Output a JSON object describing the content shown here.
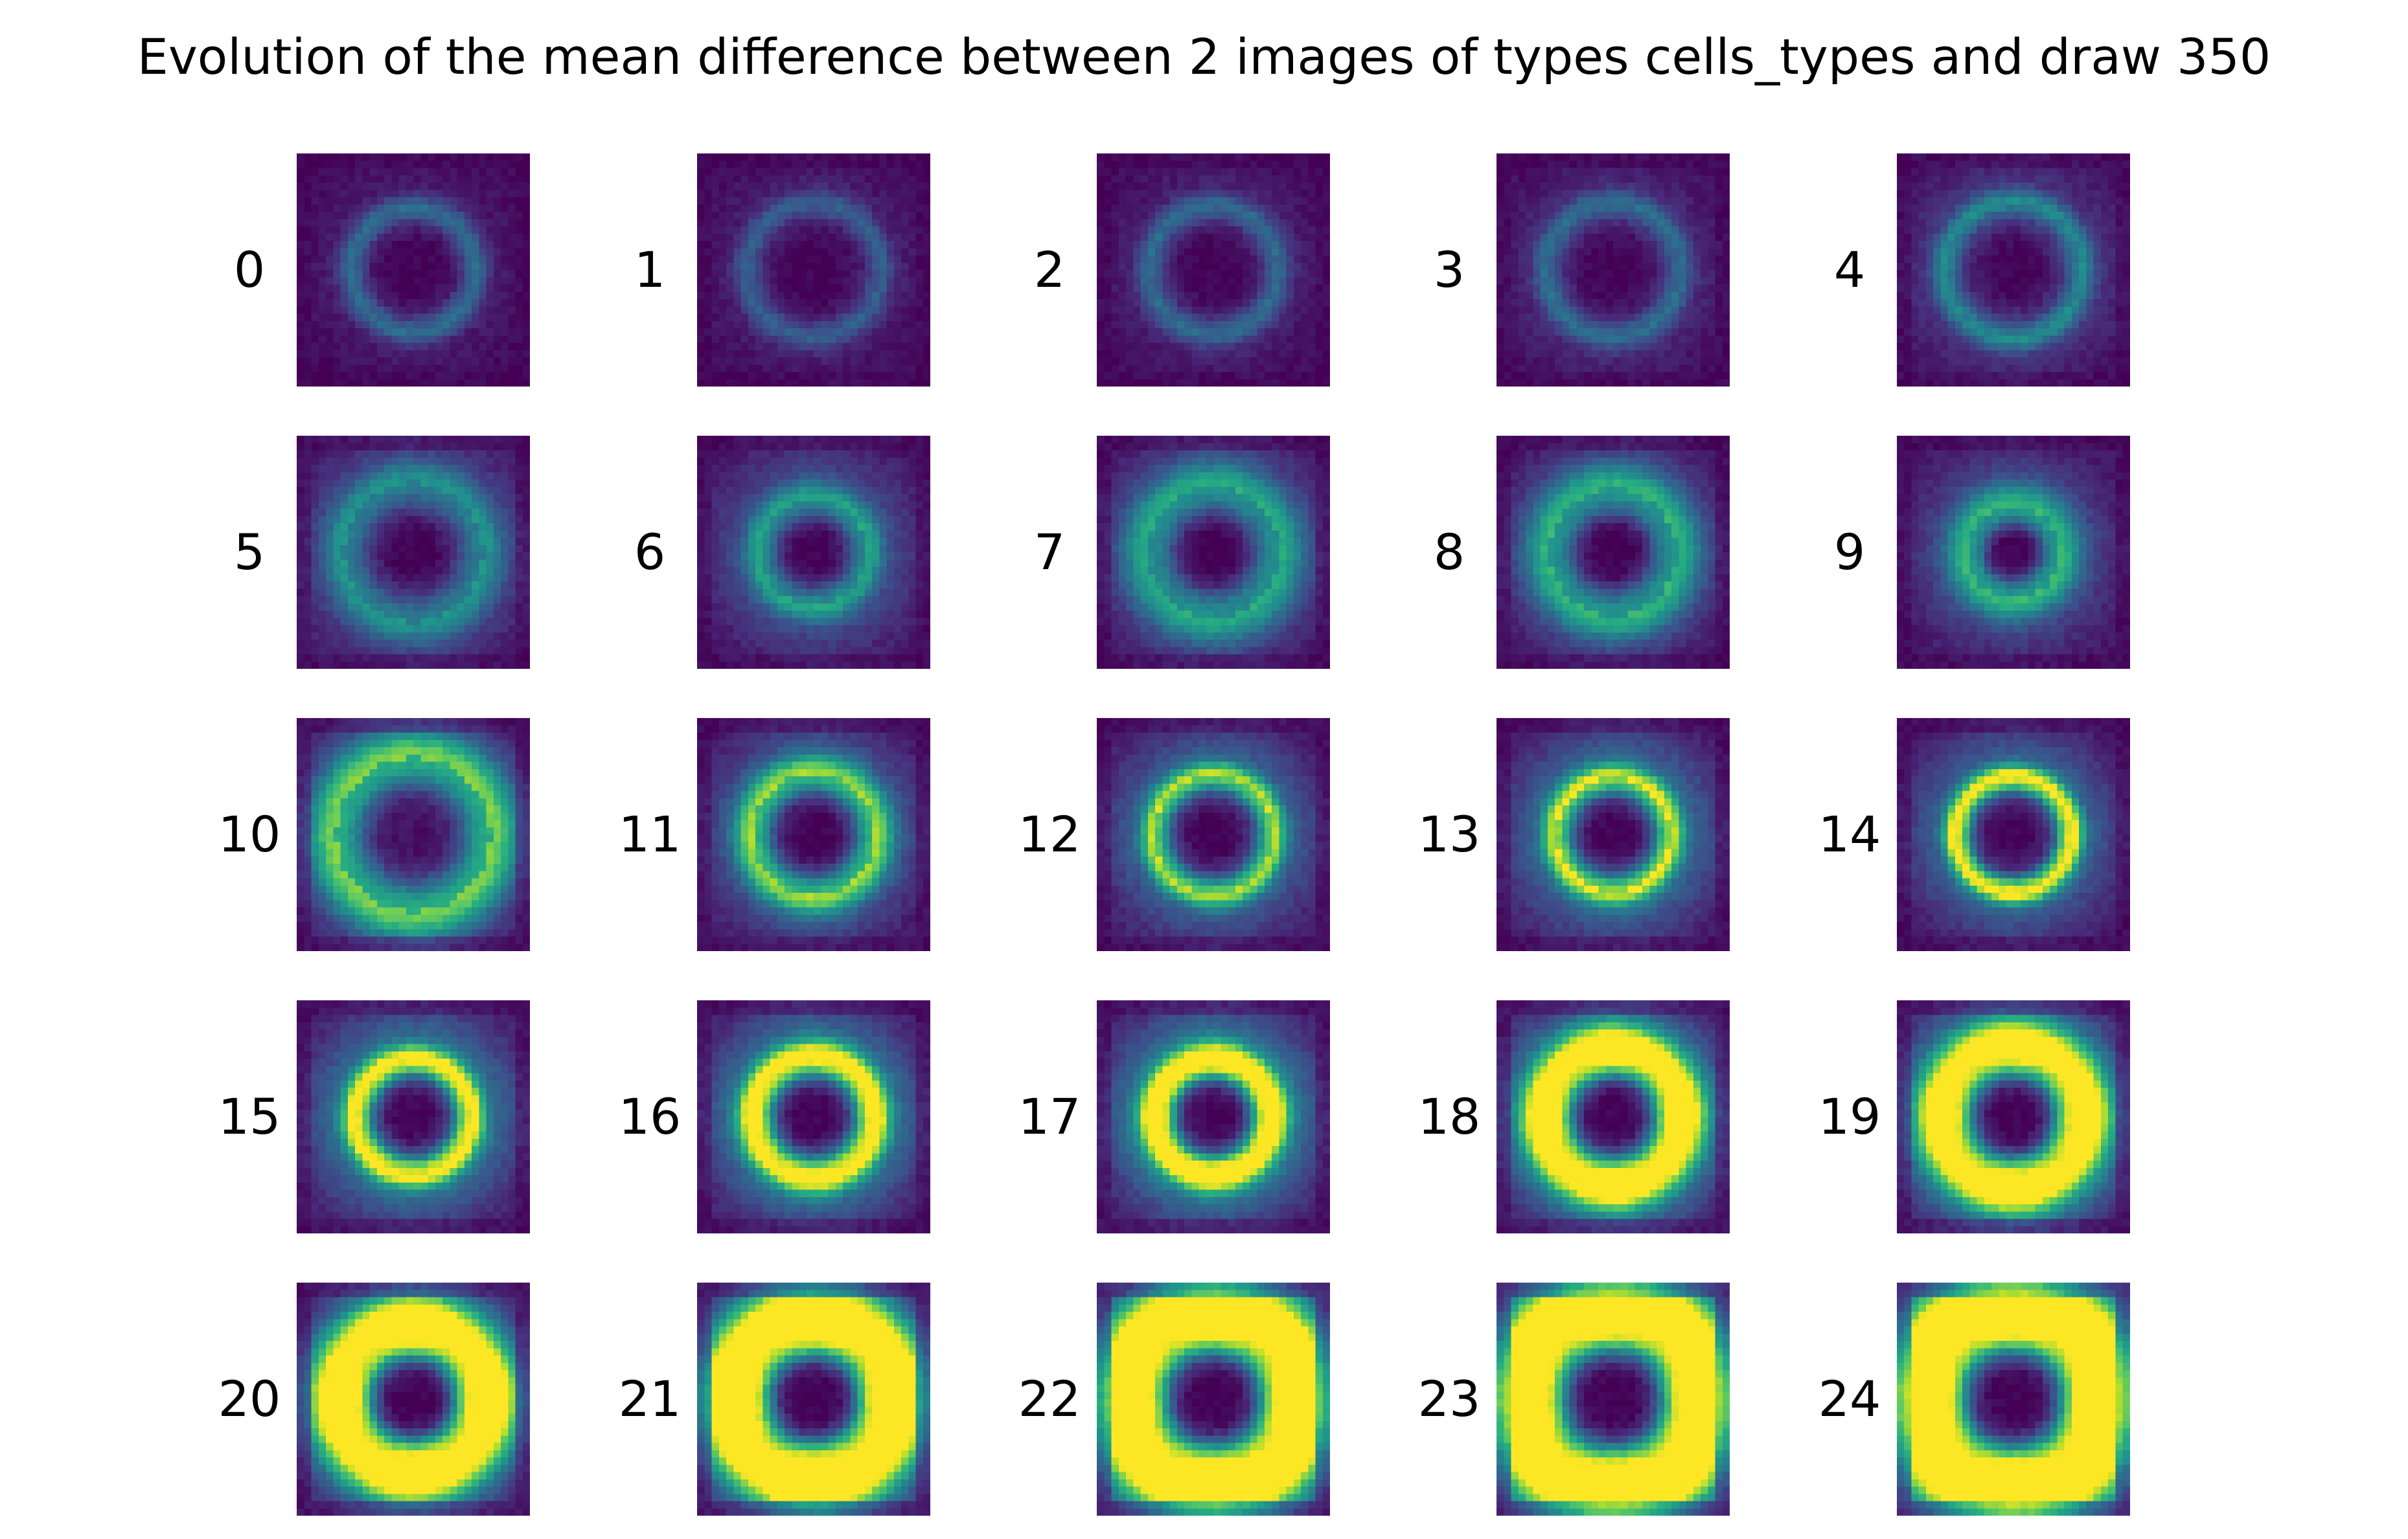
{
  "chart_data": {
    "type": "heatmap",
    "title": "Evolution of the mean difference between 2 images of types cells_types and draw 350",
    "colormap": "viridis",
    "grid": false,
    "layout": "5x5 grid of small heatmaps",
    "panels": [
      {
        "label": "0",
        "ring_intensity": 0.28,
        "ring_radius": 0.26,
        "ring_width": 0.06,
        "background": 0.06,
        "outer_glow": 0.04,
        "lobe_boost": 0.0,
        "center": 0.0
      },
      {
        "label": "1",
        "ring_intensity": 0.23,
        "ring_radius": 0.28,
        "ring_width": 0.06,
        "background": 0.06,
        "outer_glow": 0.05,
        "lobe_boost": 0.0,
        "center": 0.0
      },
      {
        "label": "2",
        "ring_intensity": 0.27,
        "ring_radius": 0.27,
        "ring_width": 0.06,
        "background": 0.07,
        "outer_glow": 0.05,
        "lobe_boost": 0.0,
        "center": 0.0
      },
      {
        "label": "3",
        "ring_intensity": 0.26,
        "ring_radius": 0.28,
        "ring_width": 0.06,
        "background": 0.09,
        "outer_glow": 0.06,
        "lobe_boost": 0.0,
        "center": 0.0
      },
      {
        "label": "4",
        "ring_intensity": 0.33,
        "ring_radius": 0.29,
        "ring_width": 0.06,
        "background": 0.14,
        "outer_glow": 0.06,
        "lobe_boost": 0.0,
        "center": 0.0
      },
      {
        "label": "5",
        "ring_intensity": 0.28,
        "ring_radius": 0.3,
        "ring_width": 0.09,
        "background": 0.2,
        "outer_glow": 0.1,
        "lobe_boost": 0.0,
        "center": 0.0
      },
      {
        "label": "6",
        "ring_intensity": 0.34,
        "ring_radius": 0.23,
        "ring_width": 0.07,
        "background": 0.17,
        "outer_glow": 0.12,
        "lobe_boost": 0.0,
        "center": 0.0
      },
      {
        "label": "7",
        "ring_intensity": 0.35,
        "ring_radius": 0.28,
        "ring_width": 0.11,
        "background": 0.18,
        "outer_glow": 0.14,
        "lobe_boost": 0.0,
        "center": 0.0
      },
      {
        "label": "8",
        "ring_intensity": 0.4,
        "ring_radius": 0.27,
        "ring_width": 0.11,
        "background": 0.15,
        "outer_glow": 0.15,
        "lobe_boost": 0.0,
        "center": 0.0
      },
      {
        "label": "9",
        "ring_intensity": 0.4,
        "ring_radius": 0.2,
        "ring_width": 0.09,
        "background": 0.16,
        "outer_glow": 0.14,
        "lobe_boost": 0.0,
        "center": 0.0
      },
      {
        "label": "10",
        "ring_intensity": 0.48,
        "ring_radius": 0.33,
        "ring_width": 0.12,
        "background": 0.2,
        "outer_glow": 0.2,
        "lobe_boost": 0.0,
        "center": 0.05
      },
      {
        "label": "11",
        "ring_intensity": 0.55,
        "ring_radius": 0.26,
        "ring_width": 0.08,
        "background": 0.16,
        "outer_glow": 0.2,
        "lobe_boost": 0.0,
        "center": 0.0
      },
      {
        "label": "12",
        "ring_intensity": 0.6,
        "ring_radius": 0.25,
        "ring_width": 0.06,
        "background": 0.18,
        "outer_glow": 0.2,
        "lobe_boost": 0.0,
        "center": 0.0
      },
      {
        "label": "13",
        "ring_intensity": 0.65,
        "ring_radius": 0.24,
        "ring_width": 0.06,
        "background": 0.2,
        "outer_glow": 0.22,
        "lobe_boost": 0.0,
        "center": 0.0
      },
      {
        "label": "14",
        "ring_intensity": 0.75,
        "ring_radius": 0.24,
        "ring_width": 0.055,
        "background": 0.16,
        "outer_glow": 0.22,
        "lobe_boost": 0.05,
        "center": 0.0
      },
      {
        "label": "15",
        "ring_intensity": 0.78,
        "ring_radius": 0.24,
        "ring_width": 0.06,
        "background": 0.22,
        "outer_glow": 0.25,
        "lobe_boost": 0.0,
        "center": 0.0
      },
      {
        "label": "16",
        "ring_intensity": 0.8,
        "ring_radius": 0.25,
        "ring_width": 0.07,
        "background": 0.22,
        "outer_glow": 0.27,
        "lobe_boost": 0.03,
        "center": 0.0
      },
      {
        "label": "17",
        "ring_intensity": 0.85,
        "ring_radius": 0.24,
        "ring_width": 0.07,
        "background": 0.24,
        "outer_glow": 0.3,
        "lobe_boost": 0.05,
        "center": 0.0
      },
      {
        "label": "18",
        "ring_intensity": 0.84,
        "ring_radius": 0.28,
        "ring_width": 0.1,
        "background": 0.26,
        "outer_glow": 0.36,
        "lobe_boost": 0.08,
        "center": 0.0
      },
      {
        "label": "19",
        "ring_intensity": 0.8,
        "ring_radius": 0.29,
        "ring_width": 0.11,
        "background": 0.28,
        "outer_glow": 0.38,
        "lobe_boost": 0.08,
        "center": 0.0
      },
      {
        "label": "20",
        "ring_intensity": 0.84,
        "ring_radius": 0.3,
        "ring_width": 0.13,
        "background": 0.26,
        "outer_glow": 0.4,
        "lobe_boost": 0.1,
        "center": 0.0
      },
      {
        "label": "21",
        "ring_intensity": 0.86,
        "ring_radius": 0.33,
        "ring_width": 0.15,
        "background": 0.3,
        "outer_glow": 0.46,
        "lobe_boost": 0.12,
        "center": 0.0
      },
      {
        "label": "22",
        "ring_intensity": 0.84,
        "ring_radius": 0.36,
        "ring_width": 0.17,
        "background": 0.34,
        "outer_glow": 0.5,
        "lobe_boost": 0.12,
        "center": 0.0
      },
      {
        "label": "23",
        "ring_intensity": 0.86,
        "ring_radius": 0.38,
        "ring_width": 0.18,
        "background": 0.34,
        "outer_glow": 0.52,
        "lobe_boost": 0.14,
        "center": 0.0
      },
      {
        "label": "24",
        "ring_intensity": 0.86,
        "ring_radius": 0.38,
        "ring_width": 0.19,
        "background": 0.36,
        "outer_glow": 0.55,
        "lobe_boost": 0.14,
        "center": 0.0
      }
    ]
  }
}
